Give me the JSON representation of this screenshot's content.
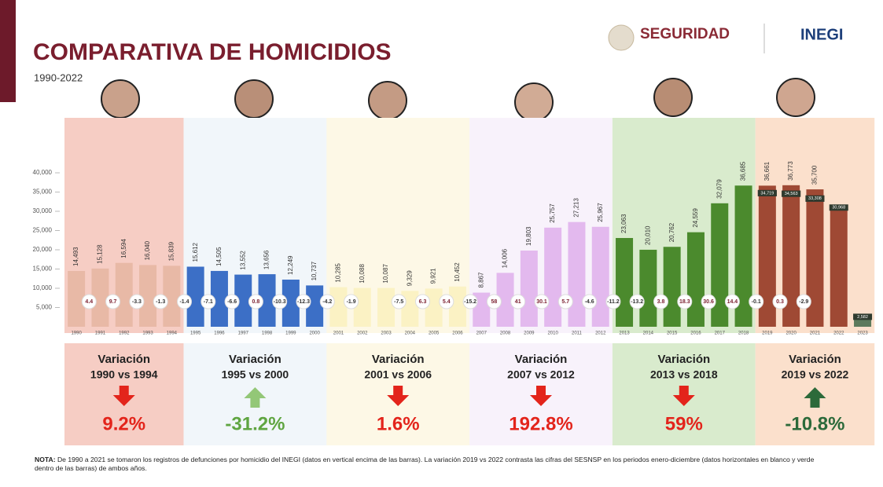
{
  "chart_data": {
    "type": "bar",
    "title": "COMPARATIVA DE HOMICIDIOS",
    "subtitle": "1990-2022",
    "logo_left": "SEGURIDAD",
    "logo_right": "INEGI",
    "categories": [
      "1990",
      "1991",
      "1992",
      "1993",
      "1994",
      "1995",
      "1996",
      "1997",
      "1998",
      "1999",
      "2000",
      "2001",
      "2002",
      "2003",
      "2004",
      "2005",
      "2006",
      "2007",
      "2008",
      "2009",
      "2010",
      "2011",
      "2012",
      "2013",
      "2014",
      "2015",
      "2016",
      "2017",
      "2018",
      "2019",
      "2020",
      "2021",
      "2022",
      "2023"
    ],
    "values": [
      14493,
      15128,
      16594,
      16040,
      15839,
      15612,
      14505,
      13552,
      13656,
      12249,
      10737,
      10285,
      10088,
      10087,
      9329,
      9921,
      10452,
      8867,
      14006,
      19803,
      25757,
      27213,
      25967,
      23063,
      20010,
      20762,
      24559,
      32079,
      36685,
      36661,
      36773,
      35700,
      null,
      null
    ],
    "value_labels": [
      "14,493",
      "15,128",
      "16,594",
      "16,040",
      "15,839",
      "15,612",
      "14,505",
      "13,552",
      "13,656",
      "12,249",
      "10,737",
      "10,285",
      "10,088",
      "10,087",
      "9,329",
      "9,921",
      "10,452",
      "8,867",
      "14,006",
      "19,803",
      "25,757",
      "27,213",
      "25,967",
      "23,063",
      "20,010",
      "20,762",
      "24,559",
      "32,079",
      "36,685",
      "36,661",
      "36,773",
      "35,700",
      null,
      null
    ],
    "values_sesnsp": [
      null,
      null,
      null,
      null,
      null,
      null,
      null,
      null,
      null,
      null,
      null,
      null,
      null,
      null,
      null,
      null,
      null,
      null,
      null,
      null,
      null,
      null,
      null,
      null,
      null,
      null,
      null,
      null,
      null,
      34719,
      34563,
      33308,
      30968,
      2582
    ],
    "value_labels_sesnsp": [
      null,
      null,
      null,
      null,
      null,
      null,
      null,
      null,
      null,
      null,
      null,
      null,
      null,
      null,
      null,
      null,
      null,
      null,
      null,
      null,
      null,
      null,
      null,
      null,
      null,
      null,
      null,
      null,
      null,
      "34,719",
      "34,563",
      "33,308",
      "30,968",
      "2,582"
    ],
    "changes": [
      null,
      4.4,
      9.7,
      -3.3,
      -1.3,
      -1.4,
      -7.1,
      -6.6,
      0.8,
      -10.3,
      -12.3,
      -4.2,
      -1.9,
      null,
      -7.5,
      6.3,
      5.4,
      -15.2,
      58,
      41,
      30.1,
      5.7,
      -4.6,
      -11.2,
      -13.2,
      3.8,
      18.3,
      30.6,
      14.4,
      -0.1,
      0.3,
      -2.9,
      null,
      null
    ],
    "ylim": [
      0,
      40000
    ],
    "yticks": [
      {
        "value": 5000,
        "label": "5,000"
      },
      {
        "value": 10000,
        "label": "10,000"
      },
      {
        "value": 15000,
        "label": "15,000"
      },
      {
        "value": 20000,
        "label": "20,000"
      },
      {
        "value": 25000,
        "label": "25,000"
      },
      {
        "value": 30000,
        "label": "30,000"
      },
      {
        "value": 35000,
        "label": "35,000"
      },
      {
        "value": 40000,
        "label": "40,000"
      }
    ],
    "periods": [
      {
        "heading": "Variación",
        "comparison": "1990 vs 1994",
        "variation": {
          "value": 9.2,
          "label": "9.2%"
        },
        "bg_color": "#f6cdc4",
        "bar_color": "#e8b9a6",
        "arrow_color": "#e3241b",
        "text_color": "#e3241b"
      },
      {
        "heading": "Variación",
        "comparison": "1995 vs 2000",
        "variation": {
          "value": -31.2,
          "label": "-31.2%"
        },
        "bg_color": "#f1f6fa",
        "bar_color": "#3c6fc6",
        "arrow_color": "#93c777",
        "text_color": "#5fa541"
      },
      {
        "heading": "Variación",
        "comparison": "2001 vs 2006",
        "variation": {
          "value": 1.6,
          "label": "1.6%"
        },
        "bg_color": "#fdf8e6",
        "bar_color": "#fbf2c4",
        "arrow_color": "#e3241b",
        "text_color": "#e3241b"
      },
      {
        "heading": "Variación",
        "comparison": "2007 vs 2012",
        "variation": {
          "value": 192.8,
          "label": "192.8%"
        },
        "bg_color": "#f8f2fb",
        "bar_color": "#e3b9ee",
        "arrow_color": "#e3241b",
        "text_color": "#e3241b"
      },
      {
        "heading": "Variación",
        "comparison": "2013 vs 2018",
        "variation": {
          "value": 59,
          "label": "59%"
        },
        "bg_color": "#d9ebcd",
        "bar_color": "#4b8a2d",
        "arrow_color": "#e3241b",
        "text_color": "#e3241b"
      },
      {
        "heading": "Variación",
        "comparison": "2019 vs 2022",
        "variation": {
          "value": -10.8,
          "label": "-10.8%"
        },
        "bg_color": "#fbe0cc",
        "bar_color": "#9f4934",
        "arrow_color": "#2c6a3a",
        "text_color": "#2c6a3a"
      }
    ],
    "note": {
      "label": "NOTA:",
      "text": "De 1990 a 2021 se tomaron los registros de defunciones por homicidio del INEGI (datos en vertical encima de las barras). La variación 2019 vs 2022 contrasta las cifras del SESNSP en los periodos enero-diciembre (datos horizontales en blanco y verde dentro de las barras) de ambos años."
    }
  }
}
